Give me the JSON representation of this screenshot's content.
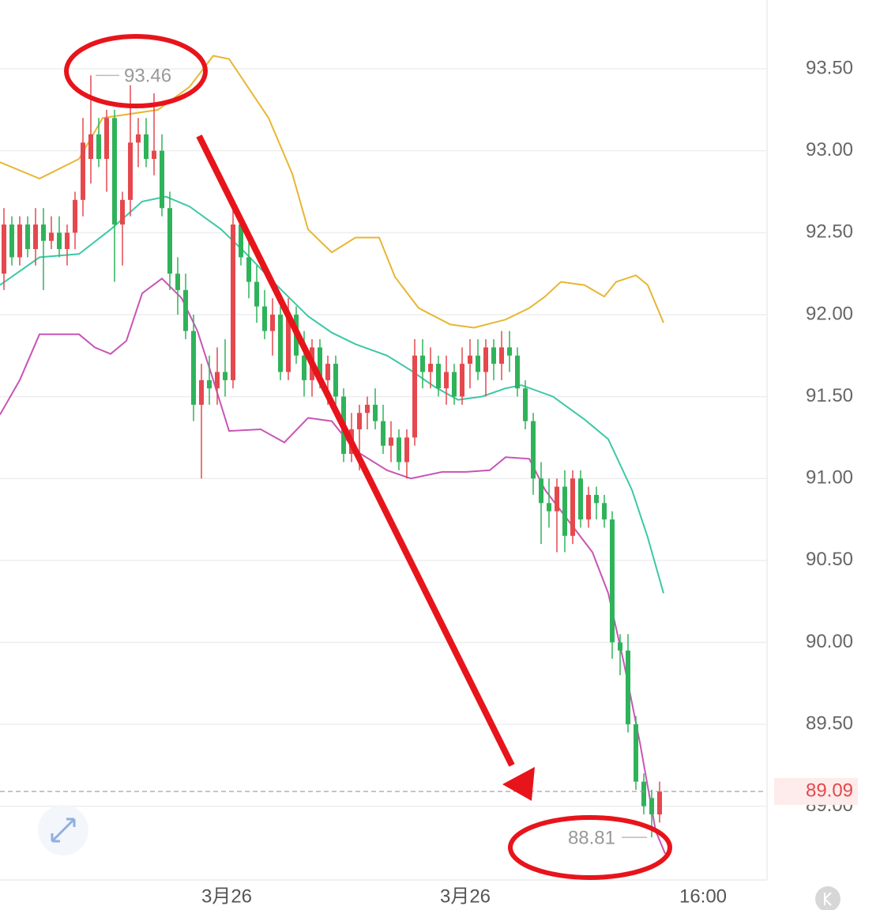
{
  "chart_data": {
    "type": "candlestick",
    "ylim": [
      88.55,
      93.92
    ],
    "yticks": [
      {
        "value": 89,
        "label": "89.00"
      },
      {
        "value": 89.5,
        "label": "89.50"
      },
      {
        "value": 90,
        "label": "90.00"
      },
      {
        "value": 90.5,
        "label": "90.50"
      },
      {
        "value": 91,
        "label": "91.00"
      },
      {
        "value": 91.5,
        "label": "91.50"
      },
      {
        "value": 92,
        "label": "92.00"
      },
      {
        "value": 92.5,
        "label": "92.50"
      },
      {
        "value": 93,
        "label": "93.00"
      },
      {
        "value": 93.5,
        "label": "93.50"
      }
    ],
    "xlim": [
      -0.5,
      96.5
    ],
    "xticks": [
      {
        "value": 28.2,
        "label": "3月26"
      },
      {
        "value": 58.4,
        "label": "3月26"
      },
      {
        "value": 88.5,
        "label": "16:00"
      }
    ],
    "grid": true,
    "up_color": "#e5484d",
    "down_color": "#2fb35a",
    "open": [
      92.25,
      92.55,
      92.35,
      92.55,
      92.4,
      92.55,
      92.45,
      92.5,
      92.4,
      92.5,
      92.7,
      92.95,
      93.1,
      92.95,
      93.2,
      92.55,
      92.7,
      93.05,
      93.1,
      92.95,
      93.0,
      92.65,
      92.25,
      92.15,
      91.9,
      91.45,
      91.6,
      91.55,
      91.65,
      91.6,
      92.55,
      92.35,
      92.2,
      92.05,
      91.9,
      92.0,
      91.65,
      92.0,
      91.75,
      91.6,
      91.8,
      91.6,
      91.7,
      91.5,
      91.15,
      91.3,
      91.4,
      91.45,
      91.35,
      91.2,
      91.25,
      91.1,
      91.25,
      91.75,
      91.65,
      91.7,
      91.55,
      91.65,
      91.5,
      91.7,
      91.75,
      91.65,
      91.8,
      91.7,
      91.8,
      91.75,
      91.55,
      91.35,
      91.0,
      90.85,
      90.8,
      90.95,
      90.65,
      91.0,
      90.75,
      90.9,
      90.85,
      90.75,
      90.0,
      89.95,
      89.5,
      89.15,
      89.05,
      88.95
    ],
    "high": [
      92.65,
      92.6,
      92.6,
      92.6,
      92.65,
      92.65,
      92.6,
      92.6,
      92.55,
      92.75,
      93.2,
      93.46,
      93.2,
      93.25,
      93.25,
      92.75,
      93.4,
      93.2,
      93.2,
      93.35,
      93.1,
      92.75,
      92.35,
      92.25,
      92.0,
      91.7,
      91.75,
      91.8,
      91.85,
      92.7,
      92.6,
      92.45,
      92.3,
      92.15,
      92.1,
      92.05,
      92.1,
      92.05,
      91.9,
      91.85,
      91.85,
      91.75,
      91.75,
      91.55,
      91.4,
      91.45,
      91.5,
      91.55,
      91.45,
      91.35,
      91.3,
      91.3,
      91.85,
      91.85,
      91.8,
      91.75,
      91.75,
      91.7,
      91.8,
      91.85,
      91.85,
      91.85,
      91.85,
      91.9,
      91.9,
      91.8,
      91.6,
      91.4,
      91.1,
      91.0,
      91.0,
      91.05,
      91.05,
      91.05,
      90.95,
      90.95,
      90.9,
      90.8,
      90.05,
      90.05,
      89.55,
      89.2,
      89.1,
      89.15
    ],
    "low": [
      92.15,
      92.3,
      92.3,
      92.35,
      92.3,
      92.15,
      92.4,
      92.35,
      92.3,
      92.4,
      92.6,
      92.8,
      92.9,
      92.75,
      92.2,
      92.3,
      92.6,
      92.9,
      92.9,
      92.85,
      92.6,
      92.15,
      92.0,
      91.85,
      91.35,
      91.0,
      91.45,
      91.45,
      91.5,
      91.55,
      92.3,
      92.1,
      91.95,
      91.85,
      91.75,
      91.6,
      91.6,
      91.7,
      91.5,
      91.5,
      91.55,
      91.45,
      91.4,
      91.1,
      91.1,
      91.05,
      91.3,
      91.3,
      91.15,
      91.1,
      91.05,
      91.0,
      91.2,
      91.55,
      91.55,
      91.5,
      91.45,
      91.45,
      91.45,
      91.55,
      91.6,
      91.5,
      91.6,
      91.6,
      91.65,
      91.5,
      91.3,
      90.9,
      90.6,
      90.7,
      90.55,
      90.55,
      90.6,
      90.7,
      90.7,
      90.75,
      90.7,
      89.9,
      89.8,
      89.45,
      89.1,
      88.95,
      88.81,
      88.9
    ],
    "close": [
      92.55,
      92.35,
      92.55,
      92.4,
      92.55,
      92.45,
      92.5,
      92.4,
      92.5,
      92.7,
      93.05,
      93.1,
      92.95,
      93.2,
      92.55,
      92.7,
      93.05,
      93.1,
      92.95,
      93.0,
      92.65,
      92.25,
      92.15,
      91.9,
      91.45,
      91.6,
      91.55,
      91.65,
      91.6,
      92.55,
      92.35,
      92.2,
      92.05,
      91.9,
      92.0,
      91.65,
      92.0,
      91.75,
      91.6,
      91.8,
      91.6,
      91.7,
      91.5,
      91.15,
      91.3,
      91.4,
      91.45,
      91.35,
      91.2,
      91.25,
      91.1,
      91.25,
      91.75,
      91.65,
      91.7,
      91.55,
      91.65,
      91.5,
      91.7,
      91.75,
      91.65,
      91.8,
      91.7,
      91.8,
      91.75,
      91.55,
      91.35,
      91.0,
      90.85,
      90.8,
      90.95,
      90.65,
      91.0,
      90.75,
      90.9,
      90.85,
      90.75,
      90.0,
      89.95,
      89.5,
      89.15,
      89.0,
      88.95,
      89.09
    ],
    "bands": [
      {
        "color": "#e8b634",
        "x": [
          -0.5,
          4.5,
          9.5,
          12.5,
          19.5,
          23.5,
          26.5,
          28.5,
          33.5,
          36.5,
          38.5,
          41.5,
          44.5,
          47.5,
          49.5,
          52.5,
          56.5,
          59.5,
          63.5,
          66.5,
          68.5,
          70.5,
          73.5,
          76,
          77.5,
          80,
          81.5,
          83.5
        ],
        "values": [
          92.93,
          92.83,
          92.95,
          93.2,
          93.25,
          93.39,
          93.58,
          93.56,
          93.2,
          92.86,
          92.52,
          92.38,
          92.47,
          92.47,
          92.23,
          92.04,
          91.94,
          91.92,
          91.97,
          92.04,
          92.11,
          92.2,
          92.18,
          92.11,
          92.2,
          92.24,
          92.18,
          91.95
        ]
      },
      {
        "color": "#3cc8a6",
        "x": [
          -0.5,
          4.5,
          9.5,
          13.5,
          17.5,
          20.5,
          23.5,
          27.5,
          30.5,
          34.5,
          38.5,
          41.5,
          44.5,
          48.5,
          51.5,
          54.5,
          57.5,
          60.5,
          63.5,
          65.5,
          69.5,
          73.5,
          76.5,
          79.5,
          81.5,
          83.5
        ],
        "values": [
          92.18,
          92.35,
          92.37,
          92.52,
          92.69,
          92.72,
          92.66,
          92.52,
          92.38,
          92.18,
          91.99,
          91.89,
          91.82,
          91.75,
          91.66,
          91.56,
          91.48,
          91.5,
          91.55,
          91.57,
          91.5,
          91.36,
          91.24,
          90.93,
          90.64,
          90.3
        ]
      },
      {
        "color": "#c855b5",
        "x": [
          -0.5,
          2,
          4.5,
          9.5,
          11.5,
          13.5,
          15.5,
          17.5,
          20,
          22.5,
          24.5,
          26.5,
          28.5,
          32.5,
          35.5,
          38.5,
          41.5,
          44.5,
          48.5,
          51.5,
          55.5,
          58.5,
          61.5,
          63.5,
          66.5,
          68.5,
          71.5,
          74.5,
          76.5,
          78.5,
          80.5,
          82.5,
          83.7
        ],
        "values": [
          91.39,
          91.6,
          91.88,
          91.88,
          91.8,
          91.76,
          91.84,
          92.13,
          92.22,
          92.1,
          91.9,
          91.6,
          91.29,
          91.3,
          91.22,
          91.37,
          91.35,
          91.17,
          91.05,
          91.0,
          91.04,
          91.04,
          91.05,
          91.13,
          91.12,
          90.93,
          90.74,
          90.55,
          90.3,
          89.87,
          89.39,
          88.85,
          88.71
        ]
      }
    ],
    "annotations": {
      "high": 93.46,
      "low": 88.81,
      "last": 89.09
    }
  }
}
